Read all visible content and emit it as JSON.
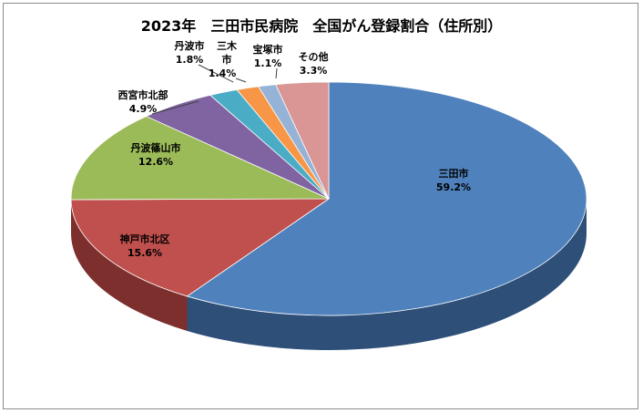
{
  "chart_data": {
    "type": "pie",
    "title": "2023年　三田市民病院　全国がん登録割合（住所別）",
    "slices": [
      {
        "name": "三田市",
        "value": 59.2,
        "label": "59.2%",
        "color": "#4f81bd",
        "side": "#2d4f78"
      },
      {
        "name": "神戸市北区",
        "value": 15.6,
        "label": "15.6%",
        "color": "#c0504d",
        "side": "#7d2f2d"
      },
      {
        "name": "丹波篠山市",
        "value": 12.6,
        "label": "12.6%",
        "color": "#9bbb59",
        "side": "#5f7a32"
      },
      {
        "name": "西宮市北部",
        "value": 4.9,
        "label": "4.9%",
        "color": "#8064a2",
        "side": "#4e3c66"
      },
      {
        "name": "丹波市",
        "value": 1.8,
        "label": "1.8%",
        "color": "#4bacc6",
        "side": "#2c6d80"
      },
      {
        "name": "三木市",
        "value": 1.4,
        "label": "1.4%",
        "color": "#f79646",
        "side": "#a85e20"
      },
      {
        "name": "宝塚市",
        "value": 1.1,
        "label": "1.1%",
        "color": "#95b3d7",
        "side": "#5e7ea6"
      },
      {
        "name": "その他",
        "value": 3.3,
        "label": "3.3%",
        "color": "#d99694",
        "side": "#9a5f5d"
      }
    ]
  }
}
